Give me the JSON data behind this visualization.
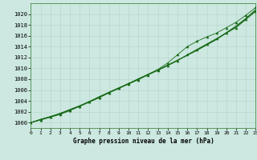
{
  "xlabel": "Graphe pression niveau de la mer (hPa)",
  "bg_color": "#cce8e0",
  "grid_color": "#aad4cc",
  "line_color": "#1a6b1a",
  "xmin": 0,
  "xmax": 23,
  "ymin": 999,
  "ymax": 1021,
  "yticks": [
    1000,
    1002,
    1004,
    1006,
    1008,
    1010,
    1012,
    1014,
    1016,
    1018,
    1020
  ],
  "xticks": [
    0,
    1,
    2,
    3,
    4,
    5,
    6,
    7,
    8,
    9,
    10,
    11,
    12,
    13,
    14,
    15,
    16,
    17,
    18,
    19,
    20,
    21,
    22,
    23
  ],
  "series": [
    [
      1000.0,
      1000.5,
      1001.0,
      1001.5,
      1002.2,
      1003.0,
      1003.8,
      1004.6,
      1005.5,
      1006.3,
      1007.1,
      1007.9,
      1008.8,
      1009.6,
      1010.5,
      1011.4,
      1012.5,
      1013.5,
      1014.5,
      1015.5,
      1016.5,
      1017.5,
      1019.0,
      1020.5
    ],
    [
      1000.0,
      1000.6,
      1001.1,
      1001.7,
      1002.4,
      1003.1,
      1003.9,
      1004.7,
      1005.6,
      1006.4,
      1007.2,
      1008.0,
      1008.9,
      1009.7,
      1010.6,
      1011.5,
      1012.4,
      1013.3,
      1014.3,
      1015.3,
      1016.5,
      1017.8,
      1019.2,
      1020.8
    ],
    [
      1000.0,
      1000.5,
      1001.0,
      1001.6,
      1002.3,
      1003.0,
      1003.8,
      1004.6,
      1005.5,
      1006.3,
      1007.2,
      1008.0,
      1008.9,
      1009.8,
      1011.0,
      1012.5,
      1014.0,
      1015.0,
      1015.8,
      1016.5,
      1017.5,
      1018.5,
      1019.8,
      1021.2
    ],
    [
      1000.0,
      1000.6,
      1001.1,
      1001.7,
      1002.4,
      1003.1,
      1003.9,
      1004.8,
      1005.6,
      1006.4,
      1007.2,
      1008.1,
      1008.9,
      1009.7,
      1010.6,
      1011.5,
      1012.4,
      1013.4,
      1014.4,
      1015.4,
      1016.6,
      1017.8,
      1019.2,
      1020.8
    ],
    [
      1000.0,
      1000.55,
      1001.1,
      1001.65,
      1002.35,
      1003.05,
      1003.85,
      1004.7,
      1005.55,
      1006.35,
      1007.15,
      1008.0,
      1008.85,
      1009.7,
      1010.55,
      1011.45,
      1012.45,
      1013.4,
      1014.4,
      1015.4,
      1016.55,
      1017.65,
      1019.1,
      1020.65
    ]
  ],
  "marker_series": [
    0,
    2
  ],
  "plain_series": [
    1,
    3,
    4
  ]
}
